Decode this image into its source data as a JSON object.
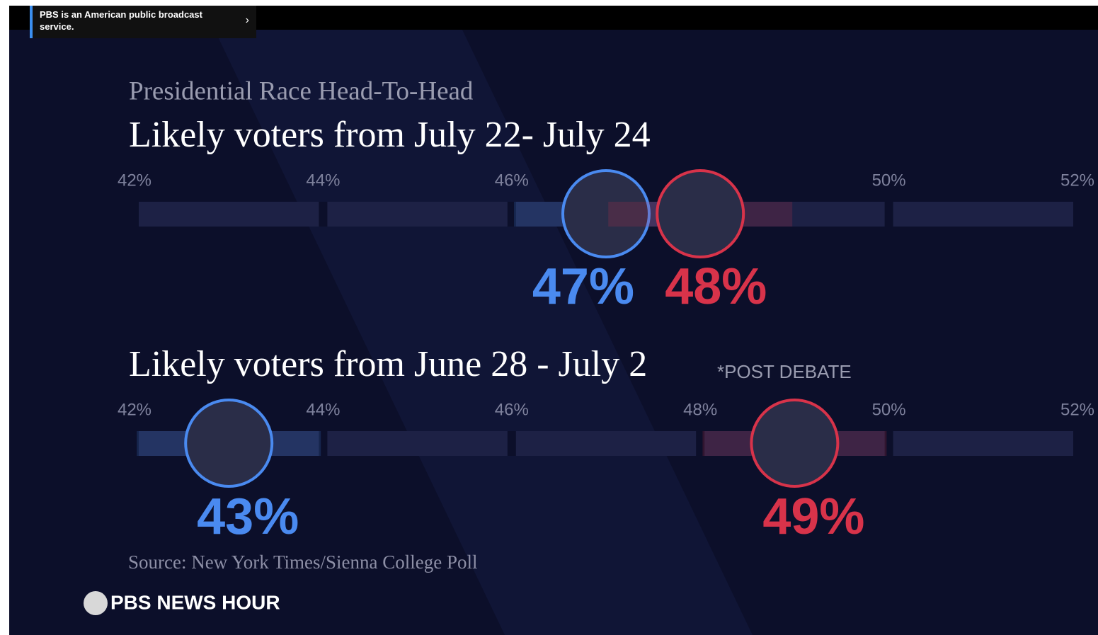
{
  "banner": {
    "text": "PBS is an American public broadcast service."
  },
  "title": "Presidential Race Head-To-Head",
  "source": "Source: New York Times/Sienna College Poll",
  "logo": "PBS NEWS HOUR",
  "chart_data": [
    {
      "type": "dot",
      "title": "Likely voters from July 22- July 24",
      "xlim": [
        42,
        52
      ],
      "xticks": [
        {
          "value": 42,
          "label": "42%"
        },
        {
          "value": 44,
          "label": "44%"
        },
        {
          "value": 46,
          "label": "46%"
        },
        {
          "value": 50,
          "label": "50%"
        },
        {
          "value": 52,
          "label": "52%"
        }
      ],
      "values": [
        47,
        48
      ],
      "value_labels": [
        "47%",
        "48%"
      ],
      "colors": [
        "#4a8af0",
        "#d8334a"
      ]
    },
    {
      "type": "dot",
      "title": "Likely voters from June 28 - July 2",
      "annotation": "*POST DEBATE",
      "xlim": [
        42,
        52
      ],
      "xticks": [
        {
          "value": 42,
          "label": "42%"
        },
        {
          "value": 44,
          "label": "44%"
        },
        {
          "value": 46,
          "label": "46%"
        },
        {
          "value": 48,
          "label": "48%"
        },
        {
          "value": 50,
          "label": "50%"
        },
        {
          "value": 52,
          "label": "52%"
        }
      ],
      "values": [
        43,
        49
      ],
      "value_labels": [
        "43%",
        "49%"
      ],
      "colors": [
        "#4a8af0",
        "#d8334a"
      ]
    }
  ]
}
